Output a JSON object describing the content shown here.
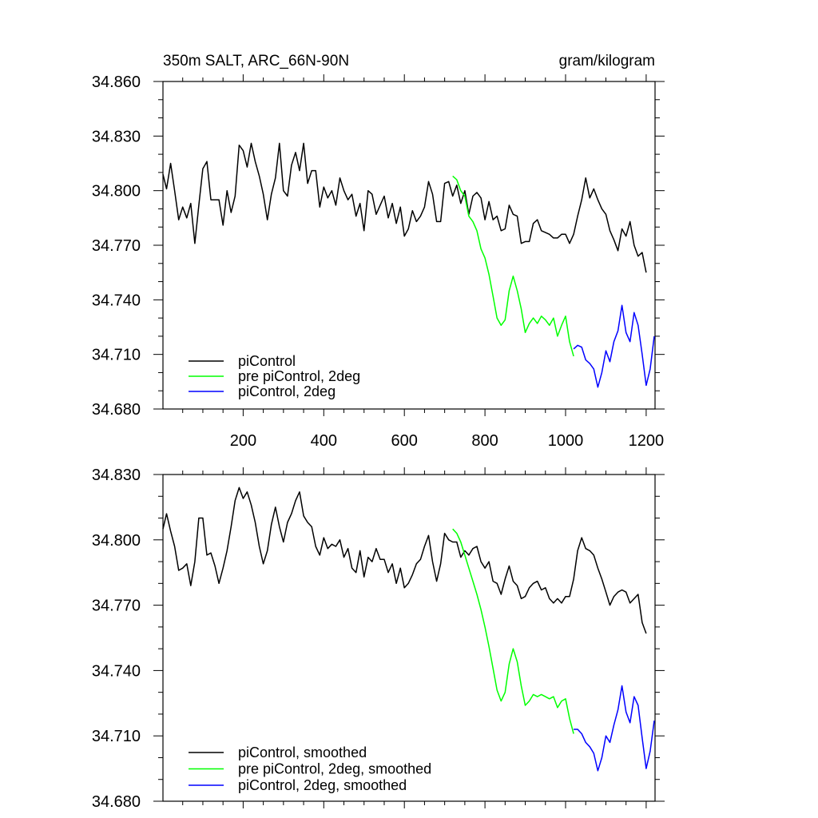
{
  "header": {
    "title": "350m SALT, ARC_66N-90N",
    "units": "gram/kilogram"
  },
  "chart_data": [
    {
      "type": "line",
      "xlim": [
        1,
        1222
      ],
      "ylim": [
        34.68,
        34.86
      ],
      "xticks": [
        200,
        400,
        600,
        800,
        1000,
        1200
      ],
      "yticks": [
        "34.680",
        "34.710",
        "34.740",
        "34.770",
        "34.800",
        "34.830",
        "34.860"
      ],
      "legend_position": "bottom-left",
      "series": [
        {
          "name": "piControl",
          "color": "#000000",
          "x": [
            1,
            10,
            20,
            30,
            40,
            50,
            60,
            70,
            80,
            90,
            100,
            110,
            120,
            130,
            140,
            150,
            160,
            170,
            180,
            190,
            200,
            210,
            220,
            230,
            240,
            250,
            260,
            270,
            280,
            290,
            300,
            310,
            320,
            330,
            340,
            350,
            360,
            370,
            380,
            390,
            400,
            410,
            420,
            430,
            440,
            450,
            460,
            470,
            480,
            490,
            500,
            510,
            520,
            530,
            540,
            550,
            560,
            570,
            580,
            590,
            600,
            610,
            620,
            630,
            640,
            650,
            660,
            670,
            680,
            690,
            700,
            710,
            720,
            730,
            740,
            750,
            760,
            770,
            780,
            790,
            800,
            810,
            820,
            830,
            840,
            850,
            860,
            870,
            880,
            890,
            900,
            910,
            920,
            930,
            940,
            950,
            960,
            970,
            980,
            990,
            1000,
            1010,
            1020,
            1030,
            1040,
            1050,
            1060,
            1070,
            1080,
            1090,
            1100,
            1110,
            1120,
            1130,
            1140,
            1150,
            1160,
            1170,
            1180,
            1190,
            1200
          ],
          "values": [
            34.809,
            34.801,
            34.815,
            34.8,
            34.784,
            34.791,
            34.785,
            34.793,
            34.771,
            34.792,
            34.812,
            34.816,
            34.795,
            34.795,
            34.795,
            34.781,
            34.8,
            34.788,
            34.797,
            34.825,
            34.822,
            34.813,
            34.826,
            34.816,
            34.808,
            34.798,
            34.784,
            34.798,
            34.807,
            34.826,
            34.8,
            34.797,
            34.814,
            34.821,
            34.811,
            34.826,
            34.804,
            34.811,
            34.811,
            34.791,
            34.802,
            34.796,
            34.8,
            34.792,
            34.807,
            34.8,
            34.795,
            34.798,
            34.786,
            34.793,
            34.778,
            34.8,
            34.798,
            34.787,
            34.792,
            34.797,
            34.785,
            34.793,
            34.782,
            34.791,
            34.775,
            34.779,
            34.789,
            34.783,
            34.786,
            34.791,
            34.805,
            34.798,
            34.783,
            34.783,
            34.804,
            34.805,
            34.797,
            34.803,
            34.793,
            34.8,
            34.787,
            34.797,
            34.799,
            34.796,
            34.784,
            34.794,
            34.784,
            34.786,
            34.778,
            34.779,
            34.792,
            34.787,
            34.786,
            34.771,
            34.772,
            34.772,
            34.782,
            34.784,
            34.778,
            34.777,
            34.776,
            34.774,
            34.774,
            34.776,
            34.776,
            34.771,
            34.776,
            34.786,
            34.795,
            34.807,
            34.796,
            34.801,
            34.795,
            34.79,
            34.787,
            34.778,
            34.773,
            34.767,
            34.779,
            34.775,
            34.783,
            34.77,
            34.764,
            34.766,
            34.755
          ]
        },
        {
          "name": "pre piControl, 2deg",
          "color": "#00ff00",
          "x": [
            720,
            730,
            740,
            750,
            760,
            770,
            780,
            790,
            800,
            810,
            820,
            830,
            840,
            850,
            860,
            870,
            880,
            890,
            900,
            910,
            920,
            930,
            940,
            950,
            960,
            970,
            980,
            990,
            1000,
            1010,
            1020
          ],
          "values": [
            34.808,
            34.806,
            34.8,
            34.797,
            34.786,
            34.783,
            34.778,
            34.768,
            34.763,
            34.754,
            34.742,
            34.73,
            34.726,
            34.729,
            34.745,
            34.753,
            34.745,
            34.735,
            34.722,
            34.727,
            34.73,
            34.727,
            34.731,
            34.729,
            34.726,
            34.73,
            34.72,
            34.726,
            34.731,
            34.717,
            34.709
          ]
        },
        {
          "name": "piControl, 2deg",
          "color": "#0000ff",
          "x": [
            1020,
            1030,
            1040,
            1050,
            1060,
            1070,
            1080,
            1090,
            1100,
            1110,
            1120,
            1130,
            1140,
            1150,
            1160,
            1170,
            1180,
            1190,
            1200,
            1210,
            1220
          ],
          "values": [
            34.713,
            34.715,
            34.714,
            34.707,
            34.705,
            34.702,
            34.692,
            34.7,
            34.712,
            34.706,
            34.717,
            34.723,
            34.737,
            34.722,
            34.717,
            34.733,
            34.726,
            34.71,
            34.693,
            34.702,
            34.72
          ]
        }
      ]
    },
    {
      "type": "line",
      "xlim": [
        1,
        1222
      ],
      "ylim": [
        34.68,
        34.83
      ],
      "xticks": [
        200,
        400,
        600,
        800,
        1000,
        1200
      ],
      "yticks": [
        "34.680",
        "34.710",
        "34.740",
        "34.770",
        "34.800",
        "34.830"
      ],
      "legend_position": "bottom-left",
      "series": [
        {
          "name": "piControl, smoothed",
          "color": "#000000",
          "x": [
            1,
            10,
            20,
            30,
            40,
            50,
            60,
            70,
            80,
            90,
            100,
            110,
            120,
            130,
            140,
            150,
            160,
            170,
            180,
            190,
            200,
            210,
            220,
            230,
            240,
            250,
            260,
            270,
            280,
            290,
            300,
            310,
            320,
            330,
            340,
            350,
            360,
            370,
            380,
            390,
            400,
            410,
            420,
            430,
            440,
            450,
            460,
            470,
            480,
            490,
            500,
            510,
            520,
            530,
            540,
            550,
            560,
            570,
            580,
            590,
            600,
            610,
            620,
            630,
            640,
            650,
            660,
            670,
            680,
            690,
            700,
            710,
            720,
            730,
            740,
            750,
            760,
            770,
            780,
            790,
            800,
            810,
            820,
            830,
            840,
            850,
            860,
            870,
            880,
            890,
            900,
            910,
            920,
            930,
            940,
            950,
            960,
            970,
            980,
            990,
            1000,
            1010,
            1020,
            1030,
            1040,
            1050,
            1060,
            1070,
            1080,
            1090,
            1100,
            1110,
            1120,
            1130,
            1140,
            1150,
            1160,
            1170,
            1180,
            1190,
            1200
          ],
          "values": [
            34.805,
            34.812,
            34.804,
            34.797,
            34.786,
            34.787,
            34.789,
            34.779,
            34.79,
            34.81,
            34.81,
            34.793,
            34.794,
            34.788,
            34.78,
            34.787,
            34.795,
            34.806,
            34.818,
            34.824,
            34.819,
            34.822,
            34.816,
            34.808,
            34.797,
            34.789,
            34.795,
            34.807,
            34.815,
            34.806,
            34.799,
            34.808,
            34.812,
            34.818,
            34.822,
            34.811,
            34.808,
            34.806,
            34.797,
            34.793,
            34.801,
            34.796,
            34.798,
            34.797,
            34.8,
            34.792,
            34.796,
            34.787,
            34.785,
            34.795,
            34.783,
            34.792,
            34.79,
            34.796,
            34.791,
            34.791,
            34.785,
            34.789,
            34.78,
            34.787,
            34.778,
            34.78,
            34.784,
            34.789,
            34.791,
            34.797,
            34.802,
            34.79,
            34.781,
            34.789,
            34.803,
            34.8,
            34.799,
            34.799,
            34.792,
            34.795,
            34.793,
            34.796,
            34.797,
            34.79,
            34.787,
            34.79,
            34.781,
            34.78,
            34.775,
            34.782,
            34.788,
            34.781,
            34.779,
            34.773,
            34.774,
            34.778,
            34.78,
            34.781,
            34.777,
            34.778,
            34.773,
            34.771,
            34.773,
            34.771,
            34.774,
            34.774,
            34.782,
            34.795,
            34.801,
            34.796,
            34.795,
            34.793,
            34.787,
            34.782,
            34.776,
            34.77,
            34.774,
            34.776,
            34.777,
            34.776,
            34.771,
            34.773,
            34.775,
            34.762,
            34.757
          ]
        },
        {
          "name": "pre piControl, 2deg, smoothed",
          "color": "#00ff00",
          "x": [
            720,
            730,
            740,
            750,
            760,
            770,
            780,
            790,
            800,
            810,
            820,
            830,
            840,
            850,
            860,
            870,
            880,
            890,
            900,
            910,
            920,
            930,
            940,
            950,
            960,
            970,
            980,
            990,
            1000,
            1010,
            1020
          ],
          "values": [
            34.805,
            34.803,
            34.799,
            34.793,
            34.787,
            34.781,
            34.775,
            34.768,
            34.76,
            34.751,
            34.741,
            34.731,
            34.726,
            34.73,
            34.743,
            34.75,
            34.744,
            34.733,
            34.724,
            34.726,
            34.729,
            34.728,
            34.729,
            34.728,
            34.727,
            34.728,
            34.723,
            34.726,
            34.727,
            34.718,
            34.711
          ]
        },
        {
          "name": "piControl, 2deg, smoothed",
          "color": "#0000ff",
          "x": [
            1020,
            1030,
            1040,
            1050,
            1060,
            1070,
            1080,
            1090,
            1100,
            1110,
            1120,
            1130,
            1140,
            1150,
            1160,
            1170,
            1180,
            1190,
            1200,
            1210,
            1220
          ],
          "values": [
            34.713,
            34.713,
            34.711,
            34.707,
            34.705,
            34.702,
            34.694,
            34.7,
            34.71,
            34.707,
            34.715,
            34.722,
            34.733,
            34.721,
            34.716,
            34.728,
            34.724,
            34.709,
            34.695,
            34.703,
            34.717
          ]
        }
      ]
    }
  ]
}
